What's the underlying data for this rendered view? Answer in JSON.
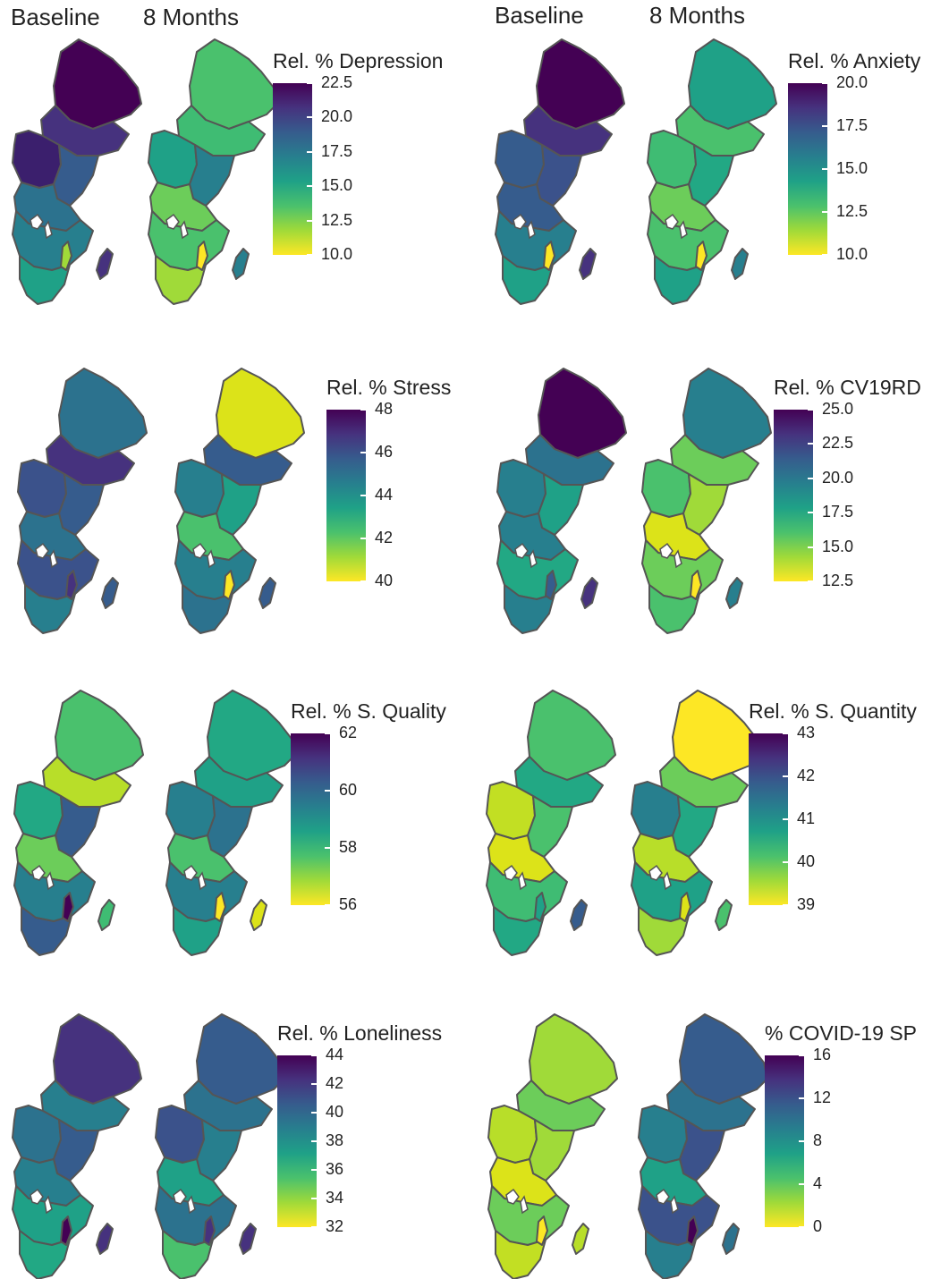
{
  "header": {
    "left_baseline": "Baseline",
    "left_months": "8 Months",
    "right_baseline": "Baseline",
    "right_months": "8 Months"
  },
  "palette": [
    "#fde725",
    "#a0da39",
    "#4ac16d",
    "#1fa187",
    "#277f8e",
    "#365c8d",
    "#46327e",
    "#440154"
  ],
  "panels": [
    {
      "id": "depression",
      "legend_title": "Rel. % Depression",
      "ticks": [
        "22.5",
        "20.0",
        "17.5",
        "15.0",
        "12.5",
        "10.0"
      ],
      "baseline": {
        "north": "#440154",
        "upper": "#46327e",
        "west": "#3b1f6d",
        "mid": "#365c8d",
        "central": "#2c728e",
        "south": "#277f8e",
        "south2": "#1fa187",
        "island": "#46327e",
        "accent": "#a0da39"
      },
      "months8": {
        "north": "#4ac16d",
        "upper": "#3fbc73",
        "west": "#1fa187",
        "mid": "#277f8e",
        "central": "#6ccd5a",
        "south": "#4ac16d",
        "south2": "#a0da39",
        "island": "#277f8e",
        "accent": "#fde725"
      }
    },
    {
      "id": "anxiety",
      "legend_title": "Rel. % Anxiety",
      "ticks": [
        "20.0",
        "17.5",
        "15.0",
        "12.5",
        "10.0"
      ],
      "baseline": {
        "north": "#440154",
        "upper": "#46327e",
        "west": "#365c8d",
        "mid": "#3b528b",
        "central": "#365c8d",
        "south": "#277f8e",
        "south2": "#1fa187",
        "island": "#46327e",
        "accent": "#fde725"
      },
      "months8": {
        "north": "#1fa187",
        "upper": "#4ac16d",
        "west": "#3fbc73",
        "mid": "#22a884",
        "central": "#6ccd5a",
        "south": "#4ac16d",
        "south2": "#1fa187",
        "island": "#277f8e",
        "accent": "#fde725"
      }
    },
    {
      "id": "stress",
      "legend_title": "Rel. % Stress",
      "ticks": [
        "48",
        "46",
        "44",
        "42",
        "40"
      ],
      "baseline": {
        "north": "#2c728e",
        "upper": "#46327e",
        "west": "#3b528b",
        "mid": "#365c8d",
        "central": "#2c728e",
        "south": "#3b528b",
        "south2": "#277f8e",
        "island": "#365c8d",
        "accent": "#46327e"
      },
      "months8": {
        "north": "#dce319",
        "upper": "#365c8d",
        "west": "#277f8e",
        "mid": "#1fa187",
        "central": "#4ac16d",
        "south": "#277f8e",
        "south2": "#2c728e",
        "island": "#365c8d",
        "accent": "#fde725"
      }
    },
    {
      "id": "cv19rd",
      "legend_title": "Rel. % CV19RD",
      "ticks": [
        "25.0",
        "22.5",
        "20.0",
        "17.5",
        "15.0",
        "12.5"
      ],
      "baseline": {
        "north": "#440154",
        "upper": "#2c728e",
        "west": "#277f8e",
        "mid": "#1fa187",
        "central": "#277f8e",
        "south": "#22a884",
        "south2": "#277f8e",
        "island": "#46327e",
        "accent": "#365c8d"
      },
      "months8": {
        "north": "#277f8e",
        "upper": "#6ccd5a",
        "west": "#4ac16d",
        "mid": "#a0da39",
        "central": "#dce319",
        "south": "#6ccd5a",
        "south2": "#4ac16d",
        "island": "#277f8e",
        "accent": "#fde725"
      }
    },
    {
      "id": "squality",
      "legend_title": "Rel. % S. Quality",
      "ticks": [
        "62",
        "60",
        "58",
        "56"
      ],
      "baseline": {
        "north": "#4ac16d",
        "upper": "#b8de29",
        "west": "#22a884",
        "mid": "#365c8d",
        "central": "#6ccd5a",
        "south": "#277f8e",
        "south2": "#365c8d",
        "island": "#3fbc73",
        "accent": "#440154"
      },
      "months8": {
        "north": "#22a884",
        "upper": "#1fa187",
        "west": "#277f8e",
        "mid": "#2c728e",
        "central": "#4ac16d",
        "south": "#277f8e",
        "south2": "#1fa187",
        "island": "#dce319",
        "accent": "#fde725"
      }
    },
    {
      "id": "squantity",
      "legend_title": "Rel. % S. Quantity",
      "ticks": [
        "43",
        "42",
        "41",
        "40",
        "39"
      ],
      "baseline": {
        "north": "#4ac16d",
        "upper": "#22a884",
        "west": "#c2df23",
        "mid": "#4ac16d",
        "central": "#dce319",
        "south": "#3fbc73",
        "south2": "#22a884",
        "island": "#365c8d",
        "accent": "#1fa187"
      },
      "months8": {
        "north": "#fde725",
        "upper": "#6ccd5a",
        "west": "#277f8e",
        "mid": "#22a884",
        "central": "#b8de29",
        "south": "#1fa187",
        "south2": "#a0da39",
        "island": "#4ac16d",
        "accent": "#dce319"
      }
    },
    {
      "id": "loneliness",
      "legend_title": "Rel. % Loneliness",
      "ticks": [
        "44",
        "42",
        "40",
        "38",
        "36",
        "34",
        "32"
      ],
      "baseline": {
        "north": "#46327e",
        "upper": "#277f8e",
        "west": "#2c728e",
        "mid": "#365c8d",
        "central": "#277f8e",
        "south": "#1fa187",
        "south2": "#22a884",
        "island": "#46327e",
        "accent": "#440154"
      },
      "months8": {
        "north": "#365c8d",
        "upper": "#2c728e",
        "west": "#3b528b",
        "mid": "#277f8e",
        "central": "#1fa187",
        "south": "#2c728e",
        "south2": "#4ac16d",
        "island": "#46327e",
        "accent": "#46327e"
      }
    },
    {
      "id": "covidsp",
      "legend_title": "% COVID-19 SP",
      "ticks": [
        "16",
        "12",
        "8",
        "4",
        "0"
      ],
      "baseline": {
        "north": "#a0da39",
        "upper": "#6ccd5a",
        "west": "#b8de29",
        "mid": "#a0da39",
        "central": "#dce319",
        "south": "#6ccd5a",
        "south2": "#c2df23",
        "island": "#b8de29",
        "accent": "#fde725"
      },
      "months8": {
        "north": "#365c8d",
        "upper": "#2c728e",
        "west": "#277f8e",
        "mid": "#3b528b",
        "central": "#1fa187",
        "south": "#3b528b",
        "south2": "#277f8e",
        "island": "#2c728e",
        "accent": "#440154"
      }
    }
  ]
}
